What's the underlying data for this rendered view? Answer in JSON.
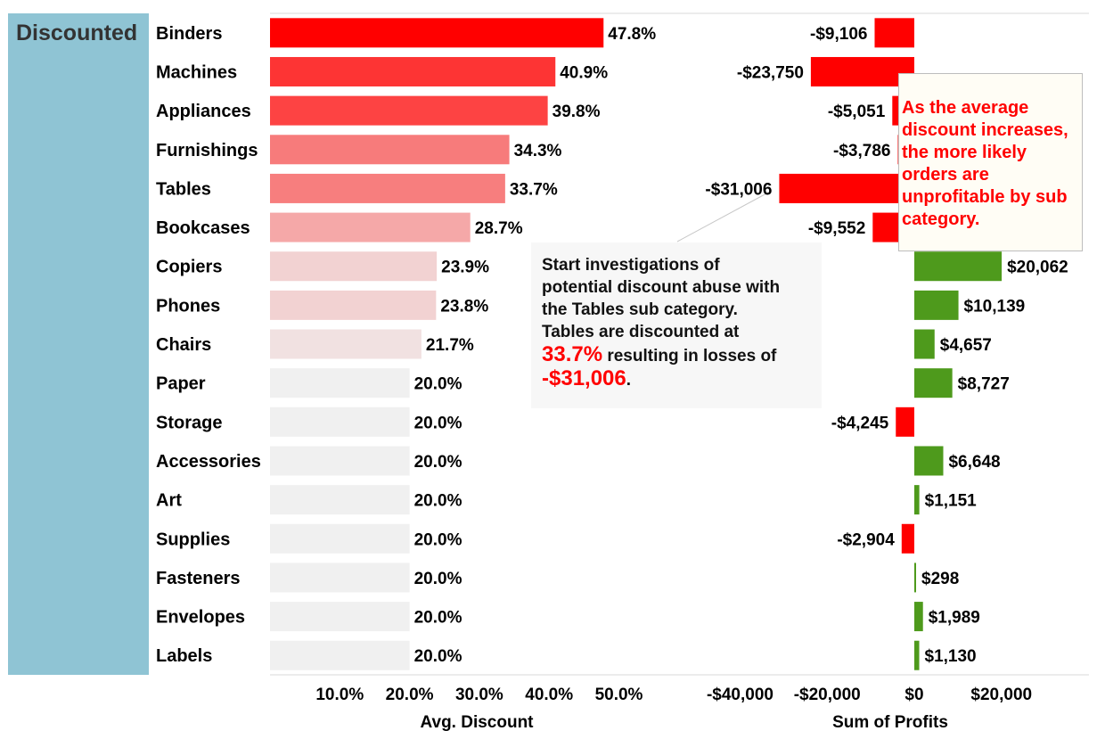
{
  "chart_data": {
    "type": "bar",
    "group_label": "Discounted",
    "categories": [
      "Binders",
      "Machines",
      "Appliances",
      "Furnishings",
      "Tables",
      "Bookcases",
      "Copiers",
      "Phones",
      "Chairs",
      "Paper",
      "Storage",
      "Accessories",
      "Art",
      "Supplies",
      "Fasteners",
      "Envelopes",
      "Labels"
    ],
    "series": [
      {
        "name": "Avg. Discount",
        "values": [
          47.8,
          40.9,
          39.8,
          34.3,
          33.7,
          28.7,
          23.9,
          23.8,
          21.7,
          20.0,
          20.0,
          20.0,
          20.0,
          20.0,
          20.0,
          20.0,
          20.0
        ],
        "labels": [
          "47.8%",
          "40.9%",
          "39.8%",
          "34.3%",
          "33.7%",
          "28.7%",
          "23.9%",
          "23.8%",
          "21.7%",
          "20.0%",
          "20.0%",
          "20.0%",
          "20.0%",
          "20.0%",
          "20.0%",
          "20.0%",
          "20.0%"
        ],
        "colors": [
          "#ff0000",
          "#fd3434",
          "#fd4343",
          "#f77b7b",
          "#f77e7e",
          "#f5a8a8",
          "#f2d2d2",
          "#f2d2d2",
          "#f1e1e1",
          "#f0f0f0",
          "#f0f0f0",
          "#f0f0f0",
          "#f0f0f0",
          "#f0f0f0",
          "#f0f0f0",
          "#f0f0f0",
          "#f0f0f0"
        ],
        "axis": {
          "range": [
            0,
            55
          ],
          "ticks": [
            10,
            20,
            30,
            40,
            50
          ],
          "tick_labels": [
            "10.0%",
            "20.0%",
            "30.0%",
            "40.0%",
            "50.0%"
          ],
          "title": "Avg. Discount"
        }
      },
      {
        "name": "Sum of Profits",
        "values": [
          -9106,
          -23750,
          -5051,
          -3786,
          -31006,
          -9552,
          20062,
          10139,
          4657,
          8727,
          -4245,
          6648,
          1151,
          -2904,
          298,
          1989,
          1130
        ],
        "labels": [
          "-$9,106",
          "-$23,750",
          "-$5,051",
          "-$3,786",
          "-$31,006",
          "-$9,552",
          "$20,062",
          "$10,139",
          "$4,657",
          "$8,727",
          "-$4,245",
          "$6,648",
          "$1,151",
          "-$2,904",
          "$298",
          "$1,989",
          "$1,130"
        ],
        "negative_color": "#ff0000",
        "positive_color": "#4e9a1c",
        "axis": {
          "range": [
            -50000,
            40000
          ],
          "ticks": [
            -40000,
            -20000,
            0,
            20000
          ],
          "tick_labels": [
            "-$40,000",
            "-$20,000",
            "$0",
            "$20,000"
          ],
          "title": "Sum of Profits"
        }
      }
    ],
    "grid": false,
    "annotations": {
      "left": {
        "line1": "Start investigations of",
        "line2": "potential discount abuse with",
        "line3": "the Tables sub category.",
        "line4": "Tables are discounted at",
        "highlight_pct": "33.7%",
        "mid_text": " resulting in losses of",
        "highlight_loss": "-$31,006",
        "end_text": "."
      },
      "right": {
        "line1": "As the average",
        "line2": "discount increases,",
        "line3": "the more likely",
        "line4": "orders are",
        "line5": "unprofitable by sub",
        "line6": "category."
      }
    }
  }
}
